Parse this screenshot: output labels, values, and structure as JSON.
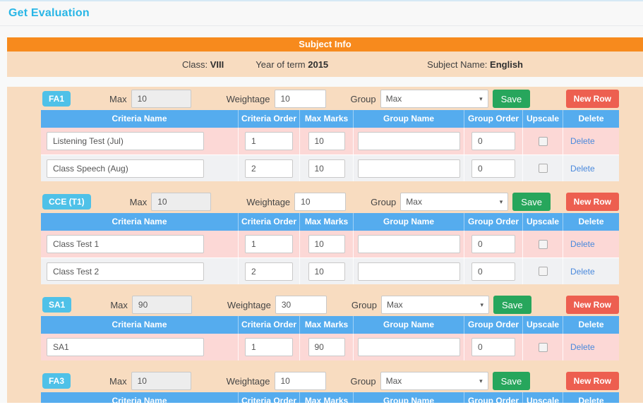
{
  "page": {
    "title": "Get Evaluation"
  },
  "subject_info": {
    "header": "Subject Info",
    "class_label": "Class:",
    "class_value": "VIII",
    "year_label": "Year of term",
    "year_value": "2015",
    "subject_label": "Subject Name:",
    "subject_value": "English"
  },
  "labels": {
    "max": "Max",
    "weightage": "Weightage",
    "group": "Group",
    "save": "Save",
    "new_row": "New Row",
    "delete": "Delete"
  },
  "table_headers": [
    "Criteria Name",
    "Criteria Order",
    "Max Marks",
    "Group Name",
    "Group Order",
    "Upscale",
    "Delete"
  ],
  "sections": [
    {
      "badge": "FA1",
      "max": "10",
      "weightage": "10",
      "group": "Max",
      "rows": [
        {
          "criteria_name": "Listening Test (Jul)",
          "criteria_order": "1",
          "max_marks": "10",
          "group_name": "",
          "group_order": "0",
          "upscale": false
        },
        {
          "criteria_name": "Class Speech (Aug)",
          "criteria_order": "2",
          "max_marks": "10",
          "group_name": "",
          "group_order": "0",
          "upscale": false
        }
      ]
    },
    {
      "badge": "CCE (T1)",
      "max": "10",
      "weightage": "10",
      "group": "Max",
      "rows": [
        {
          "criteria_name": "Class Test 1",
          "criteria_order": "1",
          "max_marks": "10",
          "group_name": "",
          "group_order": "0",
          "upscale": false
        },
        {
          "criteria_name": "Class Test 2",
          "criteria_order": "2",
          "max_marks": "10",
          "group_name": "",
          "group_order": "0",
          "upscale": false
        }
      ]
    },
    {
      "badge": "SA1",
      "max": "90",
      "weightage": "30",
      "group": "Max",
      "rows": [
        {
          "criteria_name": "SA1",
          "criteria_order": "1",
          "max_marks": "90",
          "group_name": "",
          "group_order": "0",
          "upscale": false
        }
      ]
    },
    {
      "badge": "FA3",
      "max": "10",
      "weightage": "10",
      "group": "Max",
      "rows": []
    }
  ],
  "colors": {
    "accent_orange": "#f78a1d",
    "peach_bg": "#f8dcc0",
    "table_header_blue": "#55acee",
    "badge_blue": "#4fc1e8",
    "row_pink": "#fcd8d6",
    "row_gray": "#f0f1f3",
    "save_green": "#27a65c",
    "new_row_red": "#ed5f50",
    "delete_link_blue": "#4a89dc",
    "title_blue": "#29b6e6"
  }
}
